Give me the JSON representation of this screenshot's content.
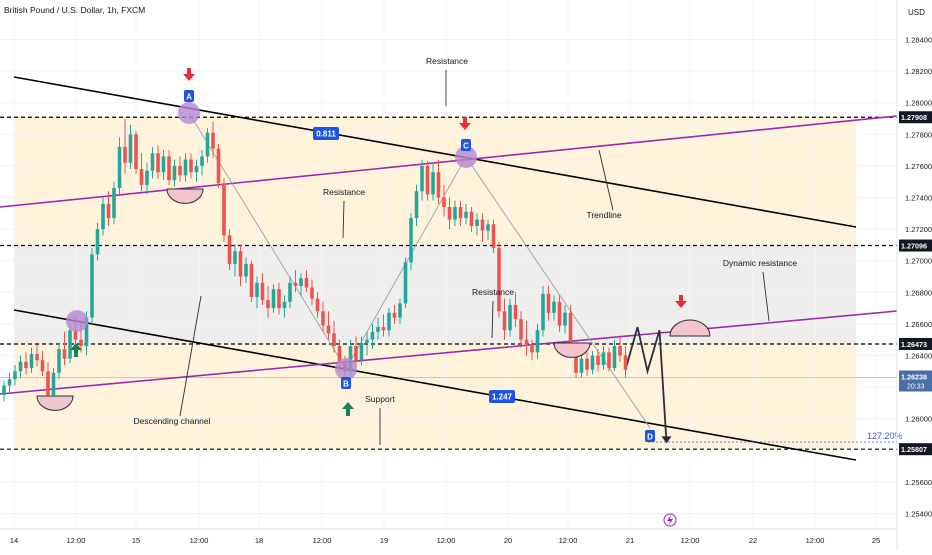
{
  "header": {
    "symbol_title": "British Pound / U.S. Dollar, 1h, FXCM",
    "currency": "USD"
  },
  "colors": {
    "up": "#26a69a",
    "down": "#ef5350",
    "channel": "#000000",
    "purple": "#9c27b0",
    "fill_orange": "#fff3dc",
    "fill_gray": "#ececf0",
    "label_blue": "#1e53e5",
    "marker_purple": "#b487d1",
    "bowl_pink": "#f2c4cc",
    "arrow_red": "#e0313a",
    "arrow_green": "#1b7f5a"
  },
  "icons": {
    "down_marker": "arrow-down-icon",
    "up_marker": "arrow-up-icon",
    "bolt": "lightning-icon"
  },
  "chart_data": {
    "type": "candlestick",
    "title": "British Pound / U.S. Dollar, 1h, FXCM",
    "yaxis": {
      "ticks": [
        "1.28400",
        "1.28200",
        "1.28000",
        "1.27800",
        "1.27600",
        "1.27400",
        "1.27200",
        "1.27000",
        "1.26800",
        "1.26600",
        "1.26400",
        "1.26200",
        "1.26000",
        "1.25600",
        "1.25400"
      ],
      "ylim": [
        1.2536,
        1.2856
      ]
    },
    "xaxis": {
      "ticks": [
        "14",
        "12:00",
        "15",
        "12:00",
        "18",
        "12:00",
        "19",
        "12:00",
        "20",
        "12:00",
        "21",
        "12:00",
        "22",
        "12:00",
        "25"
      ]
    },
    "price_levels": [
      {
        "value": 1.27908,
        "label": "1.27908"
      },
      {
        "value": 1.27096,
        "label": "1.27096"
      },
      {
        "value": 1.26473,
        "label": "1.26473"
      },
      {
        "value": 1.25807,
        "label": "1.25807"
      }
    ],
    "last_price": {
      "label": "1.26238",
      "countdown": "20:33"
    },
    "fib_labels": [
      "0.811",
      "1.247"
    ],
    "fib_extension": "127.20%",
    "points": [
      "A",
      "B",
      "C",
      "D"
    ],
    "annotations": [
      "Resistance",
      "Resistance",
      "Resistance",
      "Trendline",
      "Dynamic resistance",
      "Descending channel",
      "Support"
    ],
    "candles_ohlc": [
      [
        1.2615,
        1.2624,
        1.2611,
        1.2621
      ],
      [
        1.2621,
        1.2629,
        1.2617,
        1.2625
      ],
      [
        1.2625,
        1.2634,
        1.2621,
        1.263
      ],
      [
        1.263,
        1.264,
        1.2626,
        1.2636
      ],
      [
        1.2636,
        1.2642,
        1.2628,
        1.2632
      ],
      [
        1.2632,
        1.2645,
        1.2629,
        1.2641
      ],
      [
        1.2641,
        1.2647,
        1.2633,
        1.2637
      ],
      [
        1.2637,
        1.2643,
        1.2627,
        1.263
      ],
      [
        1.263,
        1.2636,
        1.261,
        1.2615
      ],
      [
        1.2615,
        1.2632,
        1.2611,
        1.2629
      ],
      [
        1.2629,
        1.2648,
        1.2625,
        1.2644
      ],
      [
        1.2644,
        1.2655,
        1.2634,
        1.2638
      ],
      [
        1.2638,
        1.266,
        1.2635,
        1.2656
      ],
      [
        1.2656,
        1.2665,
        1.2646,
        1.265
      ],
      [
        1.265,
        1.2661,
        1.2642,
        1.2646
      ],
      [
        1.2646,
        1.2668,
        1.264,
        1.2664
      ],
      [
        1.2664,
        1.2708,
        1.266,
        1.2704
      ],
      [
        1.2704,
        1.2724,
        1.27,
        1.272
      ],
      [
        1.272,
        1.274,
        1.2716,
        1.2736
      ],
      [
        1.2736,
        1.2744,
        1.2722,
        1.2727
      ],
      [
        1.2727,
        1.275,
        1.2723,
        1.2746
      ],
      [
        1.2746,
        1.2778,
        1.2742,
        1.2772
      ],
      [
        1.2772,
        1.279,
        1.2755,
        1.2762
      ],
      [
        1.2762,
        1.2786,
        1.2758,
        1.278
      ],
      [
        1.278,
        1.2782,
        1.2755,
        1.2758
      ],
      [
        1.2758,
        1.2768,
        1.2744,
        1.2748
      ],
      [
        1.2748,
        1.2762,
        1.2742,
        1.2757
      ],
      [
        1.2757,
        1.2772,
        1.2752,
        1.2768
      ],
      [
        1.2768,
        1.2773,
        1.2752,
        1.2756
      ],
      [
        1.2756,
        1.277,
        1.2751,
        1.2766
      ],
      [
        1.2766,
        1.277,
        1.2748,
        1.2751
      ],
      [
        1.2751,
        1.2764,
        1.2747,
        1.276
      ],
      [
        1.276,
        1.2766,
        1.275,
        1.2754
      ],
      [
        1.2754,
        1.2768,
        1.275,
        1.2764
      ],
      [
        1.2764,
        1.2768,
        1.2752,
        1.2756
      ],
      [
        1.2756,
        1.2764,
        1.275,
        1.276
      ],
      [
        1.276,
        1.277,
        1.2754,
        1.2766
      ],
      [
        1.2766,
        1.2784,
        1.2762,
        1.2781
      ],
      [
        1.2781,
        1.2788,
        1.2765,
        1.2771
      ],
      [
        1.2771,
        1.2774,
        1.2746,
        1.2749
      ],
      [
        1.2749,
        1.2752,
        1.2712,
        1.2716
      ],
      [
        1.2716,
        1.272,
        1.2694,
        1.2698
      ],
      [
        1.2698,
        1.271,
        1.269,
        1.2706
      ],
      [
        1.2706,
        1.271,
        1.2684,
        1.269
      ],
      [
        1.269,
        1.2702,
        1.2686,
        1.2698
      ],
      [
        1.2698,
        1.27,
        1.2674,
        1.2677
      ],
      [
        1.2677,
        1.269,
        1.267,
        1.2686
      ],
      [
        1.2686,
        1.2692,
        1.2672,
        1.2675
      ],
      [
        1.2675,
        1.2684,
        1.2664,
        1.267
      ],
      [
        1.267,
        1.2685,
        1.2667,
        1.2682
      ],
      [
        1.2682,
        1.2686,
        1.2666,
        1.267
      ],
      [
        1.267,
        1.2678,
        1.2664,
        1.2674
      ],
      [
        1.2674,
        1.269,
        1.267,
        1.2686
      ],
      [
        1.2686,
        1.2694,
        1.268,
        1.2684
      ],
      [
        1.2684,
        1.2692,
        1.2678,
        1.2689
      ],
      [
        1.2689,
        1.2694,
        1.268,
        1.2683
      ],
      [
        1.2683,
        1.2688,
        1.2672,
        1.2676
      ],
      [
        1.2676,
        1.268,
        1.2664,
        1.2668
      ],
      [
        1.2668,
        1.2674,
        1.2655,
        1.2659
      ],
      [
        1.2659,
        1.2668,
        1.265,
        1.2654
      ],
      [
        1.2654,
        1.2662,
        1.2642,
        1.2646
      ],
      [
        1.2646,
        1.265,
        1.263,
        1.2635
      ],
      [
        1.2635,
        1.264,
        1.2625,
        1.263
      ],
      [
        1.263,
        1.265,
        1.2627,
        1.2646
      ],
      [
        1.2646,
        1.2652,
        1.2632,
        1.2637
      ],
      [
        1.2637,
        1.2652,
        1.2634,
        1.2648
      ],
      [
        1.2648,
        1.2655,
        1.264,
        1.265
      ],
      [
        1.265,
        1.266,
        1.2644,
        1.2655
      ],
      [
        1.2655,
        1.2664,
        1.265,
        1.2658
      ],
      [
        1.2658,
        1.2666,
        1.2652,
        1.2656
      ],
      [
        1.2656,
        1.267,
        1.2652,
        1.2667
      ],
      [
        1.2667,
        1.2672,
        1.266,
        1.2664
      ],
      [
        1.2664,
        1.2676,
        1.266,
        1.2673
      ],
      [
        1.2673,
        1.2702,
        1.267,
        1.2699
      ],
      [
        1.2699,
        1.273,
        1.2694,
        1.2727
      ],
      [
        1.2727,
        1.2748,
        1.2722,
        1.2744
      ],
      [
        1.2744,
        1.2764,
        1.2738,
        1.276
      ],
      [
        1.276,
        1.2763,
        1.2738,
        1.2742
      ],
      [
        1.2742,
        1.2762,
        1.2738,
        1.2756
      ],
      [
        1.2756,
        1.2764,
        1.2736,
        1.274
      ],
      [
        1.274,
        1.2748,
        1.2728,
        1.2734
      ],
      [
        1.2734,
        1.274,
        1.272,
        1.2726
      ],
      [
        1.2726,
        1.2738,
        1.2722,
        1.2734
      ],
      [
        1.2734,
        1.2738,
        1.2722,
        1.2727
      ],
      [
        1.2727,
        1.2736,
        1.2723,
        1.2731
      ],
      [
        1.2731,
        1.2734,
        1.2718,
        1.2722
      ],
      [
        1.2722,
        1.273,
        1.2716,
        1.2726
      ],
      [
        1.2726,
        1.273,
        1.2712,
        1.2719
      ],
      [
        1.2719,
        1.2726,
        1.2713,
        1.2723
      ],
      [
        1.2723,
        1.2726,
        1.2705,
        1.2708
      ],
      [
        1.2708,
        1.2712,
        1.2664,
        1.2668
      ],
      [
        1.2668,
        1.2676,
        1.265,
        1.2656
      ],
      [
        1.2656,
        1.2676,
        1.2652,
        1.2672
      ],
      [
        1.2672,
        1.268,
        1.2658,
        1.2663
      ],
      [
        1.2663,
        1.2668,
        1.2645,
        1.265
      ],
      [
        1.265,
        1.2662,
        1.264,
        1.2646
      ],
      [
        1.2646,
        1.265,
        1.2637,
        1.2642
      ],
      [
        1.2642,
        1.266,
        1.2638,
        1.2656
      ],
      [
        1.2656,
        1.2684,
        1.2652,
        1.2679
      ],
      [
        1.2679,
        1.2684,
        1.2662,
        1.2667
      ],
      [
        1.2667,
        1.2678,
        1.2662,
        1.2674
      ],
      [
        1.2674,
        1.2678,
        1.2655,
        1.2659
      ],
      [
        1.2659,
        1.2672,
        1.2654,
        1.2667
      ],
      [
        1.2667,
        1.2672,
        1.2642,
        1.2646
      ],
      [
        1.2646,
        1.265,
        1.2626,
        1.2629
      ],
      [
        1.2629,
        1.2642,
        1.2626,
        1.2638
      ],
      [
        1.2638,
        1.2642,
        1.2627,
        1.2631
      ],
      [
        1.2631,
        1.2643,
        1.2628,
        1.264
      ],
      [
        1.264,
        1.2644,
        1.263,
        1.2634
      ],
      [
        1.2634,
        1.2646,
        1.2631,
        1.2642
      ],
      [
        1.2642,
        1.2645,
        1.263,
        1.2632
      ],
      [
        1.2632,
        1.265,
        1.263,
        1.2646
      ],
      [
        1.2646,
        1.2652,
        1.2636,
        1.264
      ],
      [
        1.264,
        1.2646,
        1.2626,
        1.2631
      ]
    ],
    "projection": [
      1.2631,
      1.2658,
      1.263,
      1.2656,
      1.2585
    ]
  }
}
